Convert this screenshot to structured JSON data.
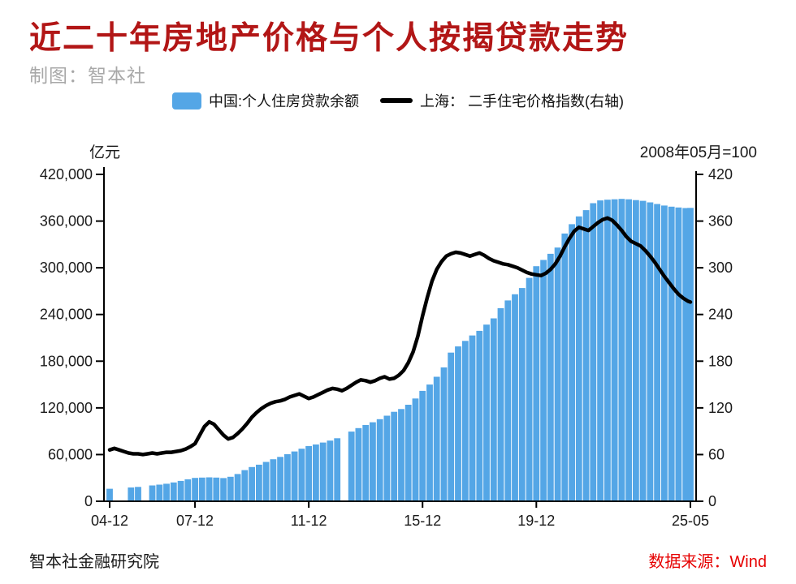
{
  "title": "近二十年房地产价格与个人按揭贷款走势",
  "subtitle": "制图：智本社",
  "colors": {
    "title": "#b21616",
    "accent_red": "#e60000",
    "bar": "#54a6e6",
    "line": "#000000"
  },
  "legend": [
    {
      "label": "中国:个人住房贷款余额",
      "type": "bar",
      "color": "#54a6e6"
    },
    {
      "label": "上海： 二手住宅价格指数(右轴)",
      "type": "line",
      "color": "#000000"
    }
  ],
  "footer": {
    "left": "智本社金融研究院",
    "right": "数据来源：Wind"
  },
  "chart_data": {
    "type": "combo-bar-line",
    "title": "近二十年房地产价格与个人按揭贷款走势",
    "x_axis": {
      "unit": "months since 2004-12",
      "tick_months": [
        0,
        36,
        84,
        132,
        180,
        245
      ],
      "tick_labels": [
        "04-12",
        "07-12",
        "11-12",
        "15-12",
        "19-12",
        "25-05"
      ]
    },
    "left_axis": {
      "label": "亿元",
      "min": 0,
      "max": 420000,
      "step": 60000,
      "tick_values": [
        0,
        60000,
        120000,
        180000,
        240000,
        300000,
        360000,
        420000
      ],
      "tick_labels": [
        "0",
        "60,000",
        "120,000",
        "180,000",
        "240,000",
        "300,000",
        "360,000",
        "420,000"
      ]
    },
    "right_axis": {
      "label": "2008年05月=100",
      "min": 0,
      "max": 420,
      "step": 60,
      "tick_values": [
        0,
        60,
        120,
        180,
        240,
        300,
        360,
        420
      ],
      "tick_labels": [
        "0",
        "60",
        "120",
        "180",
        "240",
        "300",
        "360",
        "420"
      ]
    },
    "series": [
      {
        "name": "中国:个人住房贷款余额",
        "type": "bar",
        "axis": "left",
        "color": "#54a6e6",
        "x": [
          0,
          3,
          6,
          9,
          12,
          15,
          18,
          21,
          24,
          27,
          30,
          33,
          36,
          39,
          42,
          45,
          48,
          51,
          54,
          57,
          60,
          63,
          66,
          69,
          72,
          75,
          78,
          81,
          84,
          87,
          90,
          93,
          96,
          99,
          102,
          105,
          108,
          111,
          114,
          117,
          120,
          123,
          126,
          129,
          132,
          135,
          138,
          141,
          144,
          147,
          150,
          153,
          156,
          159,
          162,
          165,
          168,
          171,
          174,
          177,
          180,
          183,
          186,
          189,
          192,
          195,
          198,
          201,
          204,
          207,
          210,
          213,
          216,
          219,
          222,
          225,
          228,
          231,
          234,
          237,
          240,
          243,
          245
        ],
        "values": [
          16000,
          null,
          null,
          17700,
          18400,
          null,
          20300,
          21400,
          22500,
          24200,
          26200,
          28200,
          30000,
          30400,
          30700,
          30400,
          29800,
          31500,
          35000,
          40000,
          44000,
          47000,
          50500,
          54000,
          57000,
          60500,
          64000,
          67500,
          71000,
          73000,
          75500,
          78000,
          81000,
          null,
          89500,
          94000,
          98000,
          101500,
          105500,
          110000,
          115000,
          118500,
          124000,
          132000,
          141800,
          150000,
          160000,
          172000,
          191000,
          199000,
          206000,
          213000,
          219000,
          227000,
          235000,
          248000,
          258000,
          266000,
          274000,
          287000,
          302000,
          310000,
          318000,
          326000,
          344000,
          356000,
          366000,
          374000,
          383000,
          386500,
          387500,
          388000,
          388500,
          388000,
          387000,
          386000,
          384000,
          382000,
          380000,
          378500,
          377500,
          376800,
          377000
        ]
      },
      {
        "name": "上海：二手住宅价格指数",
        "type": "line",
        "axis": "right",
        "color": "#000000",
        "x": [
          0,
          2,
          4,
          6,
          8,
          10,
          12,
          14,
          16,
          18,
          20,
          22,
          24,
          26,
          28,
          30,
          32,
          34,
          36,
          38,
          40,
          42,
          44,
          46,
          48,
          50,
          52,
          54,
          56,
          58,
          60,
          62,
          64,
          66,
          68,
          70,
          72,
          74,
          76,
          78,
          80,
          82,
          84,
          86,
          88,
          90,
          92,
          94,
          96,
          98,
          100,
          102,
          104,
          106,
          108,
          110,
          112,
          114,
          116,
          118,
          120,
          122,
          124,
          126,
          128,
          130,
          132,
          134,
          136,
          138,
          140,
          142,
          144,
          146,
          148,
          150,
          152,
          154,
          156,
          158,
          160,
          162,
          164,
          166,
          168,
          170,
          172,
          174,
          176,
          178,
          180,
          182,
          184,
          186,
          188,
          190,
          192,
          194,
          196,
          198,
          200,
          202,
          204,
          206,
          208,
          210,
          212,
          214,
          216,
          218,
          220,
          222,
          224,
          226,
          228,
          230,
          232,
          234,
          236,
          238,
          240,
          242,
          244,
          245
        ],
        "values": [
          66,
          68,
          66,
          64,
          62,
          61,
          61,
          60,
          61,
          62,
          61,
          62,
          63,
          63,
          64,
          65,
          67,
          70,
          74,
          85,
          96,
          102,
          99,
          92,
          85,
          80,
          82,
          87,
          93,
          100,
          108,
          114,
          119,
          123,
          126,
          128,
          129,
          131,
          134,
          136,
          138,
          135,
          132,
          134,
          137,
          140,
          143,
          145,
          144,
          142,
          145,
          149,
          153,
          156,
          155,
          153,
          155,
          158,
          160,
          157,
          158,
          162,
          168,
          178,
          192,
          212,
          238,
          262,
          283,
          298,
          308,
          315,
          318,
          320,
          319,
          317,
          315,
          317,
          319,
          316,
          312,
          309,
          307,
          305,
          304,
          302,
          300,
          297,
          294,
          292,
          291,
          290,
          293,
          298,
          305,
          315,
          327,
          338,
          347,
          352,
          350,
          348,
          353,
          358,
          362,
          364,
          361,
          355,
          348,
          340,
          334,
          331,
          328,
          322,
          315,
          307,
          298,
          289,
          281,
          273,
          266,
          261,
          257,
          256
        ]
      }
    ]
  }
}
